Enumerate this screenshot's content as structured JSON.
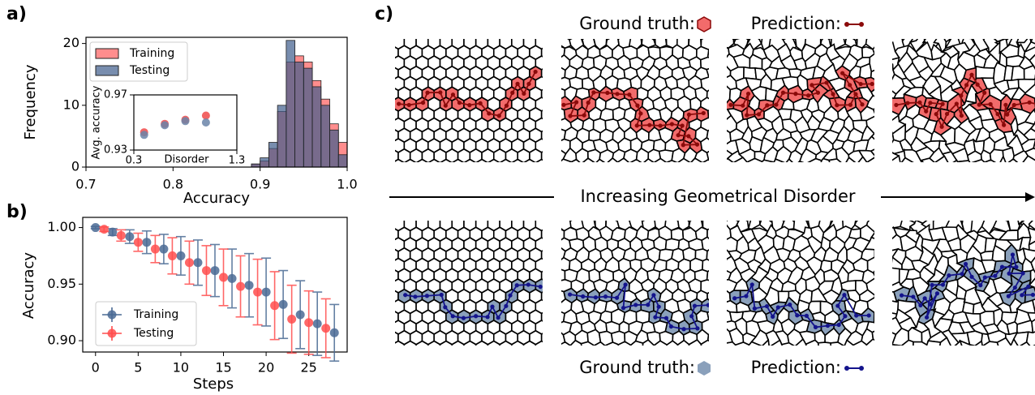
{
  "panel_labels": [
    "a)",
    "b)",
    "c)"
  ],
  "chart_data": [
    {
      "type": "histogram",
      "xlabel": "Accuracy",
      "ylabel": "Frequency",
      "bins": [
        0.89,
        0.9,
        0.91,
        0.92,
        0.93,
        0.94,
        0.95,
        0.96,
        0.97,
        0.98,
        0.99,
        1.0
      ],
      "series": [
        {
          "name": "Training",
          "color": "#ff5c5c",
          "values": [
            0.5,
            1,
            3,
            9,
            17,
            18,
            17,
            14,
            11,
            7,
            4
          ]
        },
        {
          "name": "Testing",
          "color": "#3f5c8c",
          "values": [
            0.5,
            1.5,
            4,
            10,
            20.5,
            17,
            16,
            13,
            10,
            6,
            2
          ]
        }
      ],
      "xlim": [
        0.7,
        1.0
      ],
      "xticks": [
        0.7,
        0.8,
        0.9,
        {
          "value": 1.0,
          "label": "1.0"
        }
      ],
      "ylim": [
        0,
        21
      ],
      "yticks": [
        0,
        10,
        20
      ],
      "legend": "upper left"
    },
    {
      "type": "scatter",
      "xlabel": "Disorder",
      "ylabel": "Avg. accuracy",
      "x": [
        0.4,
        0.6,
        0.8,
        1.0
      ],
      "series": [
        {
          "name": "Training",
          "color": "#f04a4a",
          "values": [
            0.9429,
            0.949,
            0.952,
            0.955
          ]
        },
        {
          "name": "Testing",
          "color": "#6a84a8",
          "values": [
            0.941,
            0.948,
            0.951,
            0.95
          ]
        }
      ],
      "xlim": [
        0.3,
        1.3
      ],
      "xticks": [
        0.3,
        1.3
      ],
      "ylim": [
        0.93,
        0.97
      ],
      "yticks": [
        0.93,
        0.97
      ]
    },
    {
      "type": "errorbar",
      "xlabel": "Steps",
      "ylabel": "Accuracy",
      "series": [
        {
          "name": "Training",
          "color": "#4a6a94",
          "x": [
            0,
            2,
            4,
            6,
            8,
            10,
            12,
            14,
            16,
            18,
            20,
            22,
            24,
            26,
            28
          ],
          "values": [
            1.0,
            0.996,
            0.992,
            0.987,
            0.981,
            0.975,
            0.969,
            0.962,
            0.955,
            0.949,
            0.943,
            0.932,
            0.923,
            0.915,
            0.907
          ],
          "errors": [
            0.001,
            0.003,
            0.006,
            0.01,
            0.013,
            0.017,
            0.02,
            0.023,
            0.026,
            0.028,
            0.03,
            0.03,
            0.03,
            0.028,
            0.025
          ]
        },
        {
          "name": "Testing",
          "color": "#ff4d4d",
          "x": [
            1,
            3,
            5,
            7,
            9,
            11,
            13,
            15,
            17,
            19,
            21,
            23,
            25,
            27
          ],
          "values": [
            0.9985,
            0.993,
            0.987,
            0.981,
            0.975,
            0.969,
            0.962,
            0.956,
            0.948,
            0.943,
            0.931,
            0.919,
            0.916,
            0.911
          ],
          "errors": [
            0.002,
            0.005,
            0.008,
            0.012,
            0.016,
            0.019,
            0.022,
            0.025,
            0.027,
            0.029,
            0.03,
            0.03,
            0.028,
            0.026
          ]
        }
      ],
      "xlim": [
        -1.5,
        29.5
      ],
      "xticks": [
        0,
        5,
        10,
        15,
        20,
        25
      ],
      "ylim": [
        0.89,
        1.009
      ],
      "yticks": [
        {
          "value": 0.9,
          "label": "0.90"
        },
        0.95,
        {
          "value": 1.0,
          "label": "1.00"
        }
      ],
      "legend": "lower left"
    }
  ],
  "panel_c": {
    "top_legend": {
      "ground_truth": "Ground truth:",
      "prediction": "Prediction:"
    },
    "arrow_label": "Increasing Geometrical Disorder",
    "bottom_legend": {
      "ground_truth": "Ground truth:",
      "prediction": "Prediction:"
    }
  }
}
